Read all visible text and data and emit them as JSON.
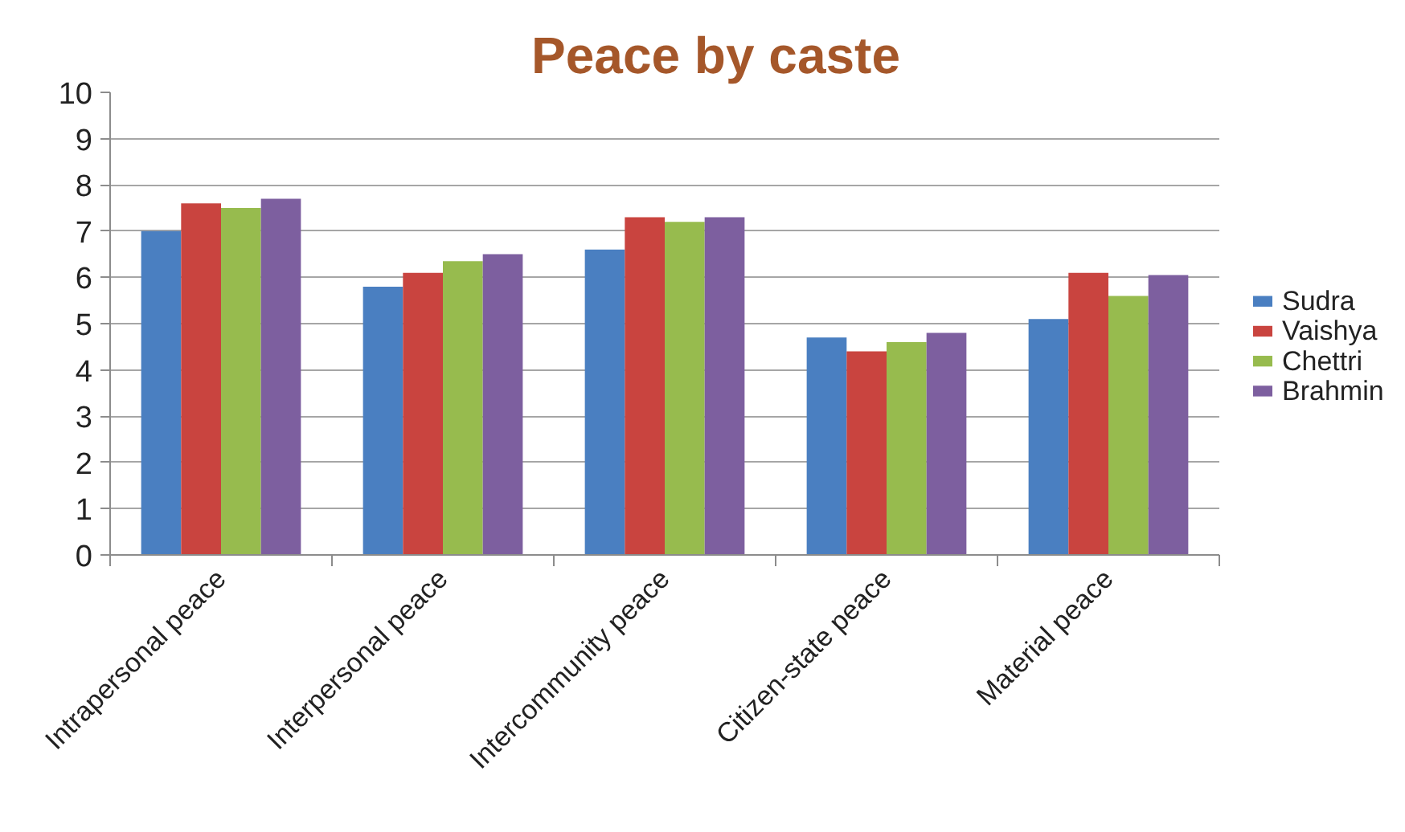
{
  "chart_data": {
    "type": "bar",
    "title": "Peace by caste",
    "categories": [
      "Intrapersonal peace",
      "Interpersonal peace",
      "Intercommunity peace",
      "Citizen-state peace",
      "Material peace"
    ],
    "series": [
      {
        "name": "Sudra",
        "color": "#4a7fc1",
        "values": [
          7.0,
          5.8,
          6.6,
          4.7,
          5.1
        ]
      },
      {
        "name": "Vaishya",
        "color": "#c9443f",
        "values": [
          7.6,
          6.1,
          7.3,
          4.4,
          6.1
        ]
      },
      {
        "name": "Chettri",
        "color": "#97bb4e",
        "values": [
          7.5,
          6.35,
          7.2,
          4.6,
          5.6
        ]
      },
      {
        "name": "Brahmin",
        "color": "#7d5f9f",
        "values": [
          7.7,
          6.5,
          7.3,
          4.8,
          6.05
        ]
      }
    ],
    "ylim": [
      0,
      10
    ],
    "yticks": [
      0,
      1,
      2,
      3,
      4,
      5,
      6,
      7,
      8,
      9,
      10
    ],
    "grid": "y",
    "legend": "right"
  }
}
